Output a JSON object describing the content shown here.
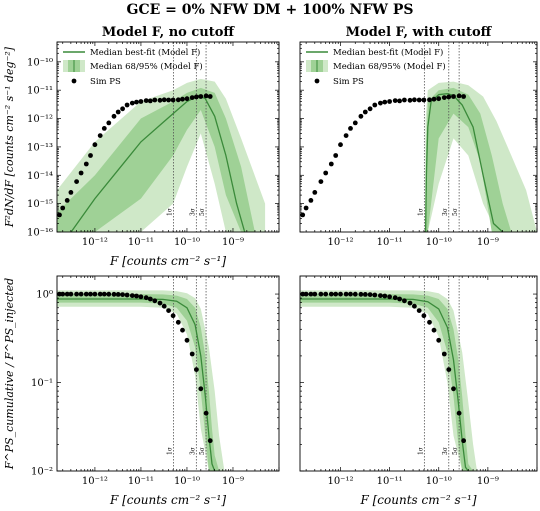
{
  "figure": {
    "suptitle": "GCE = 0% NFW DM + 100% NFW PS"
  },
  "colors": {
    "band95": "#cfe8c8",
    "band68": "#9fd196",
    "median": "#3a8a3a",
    "points": "#000000",
    "vline": "#555555"
  },
  "chart_data": [
    {
      "type": "line",
      "title": "Model F, no cutoff",
      "xlabel": "F [counts cm⁻² s⁻¹]",
      "ylabel": "F²dN/dF [counts cm⁻² s⁻¹ deg⁻²]",
      "xscale": "log",
      "yscale": "log",
      "xlim": [
        1.5e-13,
        1e-08
      ],
      "ylim": [
        1e-16,
        5e-10
      ],
      "xticks": [
        "10⁻¹²",
        "10⁻¹¹",
        "10⁻¹⁰",
        "10⁻⁹"
      ],
      "yticks": [
        "10⁻¹⁶",
        "10⁻¹⁵",
        "10⁻¹⁴",
        "10⁻¹³",
        "10⁻¹²",
        "10⁻¹¹",
        "10⁻¹⁰"
      ],
      "legend": {
        "position": "top-left",
        "entries": [
          "Median best-fit (Model F)",
          "Median 68/95% (Model F)",
          "Sim PS"
        ]
      },
      "vlines": [
        {
          "x": 5.1e-11,
          "label": "1σ"
        },
        {
          "x": 1.6e-10,
          "label": "3σ"
        },
        {
          "x": 2.6e-10,
          "label": "5σ"
        }
      ],
      "series": [
        {
          "name": "Median best-fit (Model F)",
          "x": [
            1.5e-13,
            1e-12,
            1e-11,
            5e-11,
            1e-10,
            1.8e-10,
            2.5e-10,
            4e-10,
            7e-10,
            1.2e-09,
            1.8e-09
          ],
          "y": [
            2e-17,
            1.5e-15,
            1.5e-13,
            1.5e-12,
            4e-12,
            6.5e-12,
            5e-12,
            1.2e-12,
            5e-14,
            1e-15,
            1e-16
          ]
        },
        {
          "name": "Median 68/95% (Model F)",
          "band": "68",
          "x": [
            1.5e-13,
            1e-12,
            1e-11,
            5e-11,
            1e-10,
            2e-10,
            4e-10,
            7e-10,
            1.5e-09,
            3e-09
          ],
          "lower": [
            1e-16,
            1e-16,
            1.5e-15,
            5e-14,
            4e-13,
            2e-12,
            1e-13,
            2e-15,
            1e-16,
            1e-16
          ],
          "upper": [
            5e-16,
            1e-14,
            1e-12,
            4e-12,
            8e-12,
            1.2e-11,
            8e-12,
            1e-12,
            2e-14,
            1e-16
          ]
        },
        {
          "name": "Median 68/95% (Model F)",
          "band": "95",
          "x": [
            1.5e-13,
            1e-12,
            1e-11,
            5e-11,
            1e-10,
            2e-10,
            4e-10,
            7e-10,
            1.5e-09,
            5e-09
          ],
          "lower": [
            1e-16,
            1e-16,
            1e-16,
            1e-15,
            2e-14,
            3e-13,
            5e-15,
            1e-16,
            1e-16,
            1e-16
          ],
          "upper": [
            3e-15,
            1.5e-13,
            4e-12,
            1e-11,
            1.8e-11,
            2.5e-11,
            2e-11,
            5e-12,
            2e-13,
            1e-15
          ]
        },
        {
          "name": "Sim PS",
          "x": [
            1.7e-13,
            2e-13,
            2.5e-13,
            3e-13,
            4e-13,
            5e-13,
            6.5e-13,
            8e-13,
            1e-12,
            1.3e-12,
            1.6e-12,
            2e-12,
            2.6e-12,
            3.2e-12,
            4e-12,
            5e-12,
            6.5e-12,
            8e-12,
            1e-11,
            1.3e-11,
            1.6e-11,
            2e-11,
            2.6e-11,
            3.2e-11,
            4e-11,
            5e-11,
            6.5e-11,
            8e-11,
            1e-10,
            1.3e-10,
            1.6e-10,
            2e-10,
            2.6e-10,
            3.2e-10
          ],
          "y": [
            4e-16,
            7e-16,
            1.3e-15,
            2.5e-15,
            6e-15,
            1.2e-14,
            2.5e-14,
            5e-14,
            1.2e-13,
            2.5e-13,
            4.5e-13,
            7e-13,
            1.2e-12,
            1.7e-12,
            2.2e-12,
            3e-12,
            3.5e-12,
            3.8e-12,
            4e-12,
            4.3e-12,
            4.2e-12,
            4.5e-12,
            4.4e-12,
            4.6e-12,
            4.5e-12,
            4.5e-12,
            4.6e-12,
            4.8e-12,
            5e-12,
            5.5e-12,
            5.8e-12,
            6e-12,
            6.3e-12,
            6e-12
          ]
        }
      ]
    },
    {
      "type": "line",
      "title": "Model F, with cutoff",
      "xscale": "log",
      "yscale": "log",
      "xlim": [
        1.5e-13,
        1e-08
      ],
      "ylim": [
        1e-16,
        5e-10
      ],
      "xticks": [
        "10⁻¹²",
        "10⁻¹¹",
        "10⁻¹⁰",
        "10⁻⁹"
      ],
      "legend": {
        "position": "top-left",
        "entries": [
          "Median best-fit (Model F)",
          "Median 68/95% (Model F)",
          "Sim PS"
        ]
      },
      "vlines": [
        {
          "x": 5.1e-11,
          "label": "1σ"
        },
        {
          "x": 1.6e-10,
          "label": "3σ"
        },
        {
          "x": 2.6e-10,
          "label": "5σ"
        }
      ],
      "series": [
        {
          "name": "Median best-fit (Model F)",
          "x": [
            5.4e-11,
            5.6e-11,
            6e-11,
            7e-11,
            1e-10,
            1.5e-10,
            2e-10,
            3e-10,
            5e-10,
            8e-10,
            1.3e-09,
            2e-09
          ],
          "y": [
            1e-16,
            1e-14,
            5e-13,
            4e-12,
            7e-12,
            7.5e-12,
            6.5e-12,
            3e-12,
            5e-13,
            1e-14,
            2e-16,
            1e-16
          ]
        },
        {
          "name": "Median 68/95% (Model F)",
          "band": "68",
          "x": [
            5.3e-11,
            5.5e-11,
            6e-11,
            1e-10,
            2e-10,
            4e-10,
            7e-10,
            1.2e-09,
            2e-09,
            3e-09
          ],
          "lower": [
            1e-16,
            1e-16,
            1e-16,
            2e-13,
            1.5e-12,
            5e-13,
            3e-14,
            1e-16,
            1e-16,
            1e-16
          ],
          "upper": [
            1e-16,
            1e-13,
            4e-12,
            1e-11,
            1.2e-11,
            7e-12,
            1.5e-12,
            5e-14,
            1e-15,
            1e-16
          ]
        },
        {
          "name": "Median 68/95% (Model F)",
          "band": "95",
          "x": [
            5.2e-11,
            5.4e-11,
            6e-11,
            1e-10,
            2e-10,
            4e-10,
            8e-10,
            1.5e-09,
            3e-09,
            6e-09,
            1e-08
          ],
          "lower": [
            1e-16,
            1e-16,
            1e-16,
            5e-15,
            2e-13,
            5e-14,
            1e-15,
            1e-16,
            1e-16,
            1e-16,
            1e-16
          ],
          "upper": [
            1e-16,
            1e-12,
            1e-11,
            1.8e-11,
            2e-11,
            1.5e-11,
            6e-12,
            8e-13,
            5e-14,
            3e-15,
            1e-16
          ]
        },
        {
          "name": "Sim PS",
          "x": [
            1.7e-13,
            2e-13,
            2.5e-13,
            3e-13,
            4e-13,
            5e-13,
            6.5e-13,
            8e-13,
            1e-12,
            1.3e-12,
            1.6e-12,
            2e-12,
            2.6e-12,
            3.2e-12,
            4e-12,
            5e-12,
            6.5e-12,
            8e-12,
            1e-11,
            1.3e-11,
            1.6e-11,
            2e-11,
            2.6e-11,
            3.2e-11,
            4e-11,
            5e-11,
            6.5e-11,
            8e-11,
            1e-10,
            1.3e-10,
            1.6e-10,
            2e-10,
            2.6e-10,
            3.2e-10
          ],
          "y": [
            4e-16,
            7e-16,
            1.3e-15,
            2.5e-15,
            6e-15,
            1.2e-14,
            2.5e-14,
            5e-14,
            1.2e-13,
            2.5e-13,
            4.5e-13,
            7e-13,
            1.2e-12,
            1.7e-12,
            2.2e-12,
            3e-12,
            3.5e-12,
            3.8e-12,
            4e-12,
            4.3e-12,
            4.2e-12,
            4.5e-12,
            4.4e-12,
            4.6e-12,
            4.5e-12,
            4.5e-12,
            4.6e-12,
            4.8e-12,
            5e-12,
            5.5e-12,
            5.8e-12,
            6e-12,
            6.3e-12,
            6e-12
          ]
        }
      ]
    },
    {
      "type": "line",
      "xlabel": "F [counts cm⁻² s⁻¹]",
      "ylabel": "F^PS_cumulative / F^PS_injected",
      "xscale": "log",
      "yscale": "log",
      "xlim": [
        1.5e-13,
        1e-08
      ],
      "ylim": [
        0.01,
        1.6
      ],
      "xticks": [
        "10⁻¹²",
        "10⁻¹¹",
        "10⁻¹⁰",
        "10⁻⁹"
      ],
      "yticks": [
        "10⁻²",
        "10⁻¹",
        "10⁰"
      ],
      "vlines": [
        {
          "x": 5.1e-11,
          "label": "1σ"
        },
        {
          "x": 1.6e-10,
          "label": "3σ"
        },
        {
          "x": 2.6e-10,
          "label": "5σ"
        }
      ],
      "series": [
        {
          "name": "Median best-fit (Model F)",
          "x": [
            1.5e-13,
            1e-12,
            1e-11,
            3e-11,
            6e-11,
            1e-10,
            1.5e-10,
            2e-10,
            2.5e-10,
            3e-10,
            3.5e-10,
            4e-10
          ],
          "y": [
            0.88,
            0.88,
            0.88,
            0.87,
            0.83,
            0.7,
            0.45,
            0.2,
            0.07,
            0.025,
            0.012,
            0.01
          ]
        },
        {
          "name": "Median 68/95% (Model F)",
          "band": "68",
          "x": [
            1.5e-13,
            1e-12,
            1e-11,
            3e-11,
            6e-11,
            1e-10,
            1.5e-10,
            2e-10,
            2.5e-10,
            3e-10,
            3.5e-10,
            4e-10,
            5e-10
          ],
          "lower": [
            0.8,
            0.8,
            0.8,
            0.78,
            0.7,
            0.5,
            0.25,
            0.08,
            0.025,
            0.01,
            0.01,
            0.01,
            0.01
          ],
          "upper": [
            1.0,
            1.0,
            1.0,
            0.99,
            0.96,
            0.88,
            0.7,
            0.42,
            0.2,
            0.08,
            0.03,
            0.015,
            0.01
          ]
        },
        {
          "name": "Median 68/95% (Model F)",
          "band": "95",
          "x": [
            1.5e-13,
            1e-12,
            1e-11,
            3e-11,
            6e-11,
            1e-10,
            1.5e-10,
            2e-10,
            3e-10,
            4e-10,
            5e-10,
            6.5e-10
          ],
          "lower": [
            0.72,
            0.72,
            0.72,
            0.7,
            0.6,
            0.35,
            0.12,
            0.03,
            0.01,
            0.01,
            0.01,
            0.01
          ],
          "upper": [
            1.1,
            1.1,
            1.1,
            1.1,
            1.08,
            1.02,
            0.9,
            0.68,
            0.25,
            0.08,
            0.025,
            0.01
          ]
        },
        {
          "name": "Sim PS",
          "x": [
            1.7e-13,
            2e-13,
            2.5e-13,
            3e-13,
            4e-13,
            5e-13,
            6.5e-13,
            8e-13,
            1e-12,
            1.3e-12,
            1.6e-12,
            2e-12,
            2.6e-12,
            3.2e-12,
            4e-12,
            5e-12,
            6.5e-12,
            8e-12,
            1e-11,
            1.3e-11,
            1.6e-11,
            2e-11,
            2.6e-11,
            3.2e-11,
            4e-11,
            5e-11,
            6.5e-11,
            8e-11,
            1e-10,
            1.3e-10,
            1.6e-10,
            2e-10,
            2.6e-10,
            3.2e-10
          ],
          "y": [
            1.0,
            1.0,
            1.0,
            1.0,
            1.0,
            1.0,
            1.0,
            1.0,
            1.0,
            1.0,
            0.998,
            0.997,
            0.995,
            0.99,
            0.985,
            0.975,
            0.96,
            0.95,
            0.93,
            0.91,
            0.88,
            0.84,
            0.79,
            0.73,
            0.65,
            0.57,
            0.48,
            0.39,
            0.3,
            0.21,
            0.14,
            0.085,
            0.045,
            0.022
          ]
        }
      ]
    },
    {
      "type": "line",
      "xlabel": "F [counts cm⁻² s⁻¹]",
      "xscale": "log",
      "yscale": "log",
      "xlim": [
        1.5e-13,
        1e-08
      ],
      "ylim": [
        0.01,
        1.6
      ],
      "xticks": [
        "10⁻¹²",
        "10⁻¹¹",
        "10⁻¹⁰",
        "10⁻⁹"
      ],
      "vlines": [
        {
          "x": 5.1e-11,
          "label": "1σ"
        },
        {
          "x": 1.6e-10,
          "label": "3σ"
        },
        {
          "x": 2.6e-10,
          "label": "5σ"
        }
      ],
      "series": [
        {
          "name": "Median best-fit (Model F)",
          "x": [
            1.5e-13,
            1e-12,
            1e-11,
            3e-11,
            6e-11,
            1e-10,
            1.5e-10,
            2e-10,
            2.5e-10,
            3e-10,
            3.5e-10,
            4e-10
          ],
          "y": [
            0.88,
            0.88,
            0.88,
            0.87,
            0.82,
            0.68,
            0.42,
            0.18,
            0.06,
            0.022,
            0.011,
            0.01
          ]
        },
        {
          "name": "Median 68/95% (Model F)",
          "band": "68",
          "x": [
            1.5e-13,
            1e-12,
            1e-11,
            3e-11,
            6e-11,
            1e-10,
            1.5e-10,
            2e-10,
            2.5e-10,
            3e-10,
            3.5e-10,
            4e-10,
            5e-10
          ],
          "lower": [
            0.8,
            0.8,
            0.8,
            0.78,
            0.7,
            0.48,
            0.22,
            0.07,
            0.02,
            0.01,
            0.01,
            0.01,
            0.01
          ],
          "upper": [
            1.0,
            1.0,
            1.0,
            0.99,
            0.96,
            0.88,
            0.68,
            0.4,
            0.18,
            0.07,
            0.025,
            0.012,
            0.01
          ]
        },
        {
          "name": "Median 68/95% (Model F)",
          "band": "95",
          "x": [
            1.5e-13,
            1e-12,
            1e-11,
            3e-11,
            6e-11,
            1e-10,
            1.5e-10,
            2e-10,
            3e-10,
            4e-10,
            5e-10,
            6e-10
          ],
          "lower": [
            0.72,
            0.72,
            0.72,
            0.7,
            0.6,
            0.33,
            0.1,
            0.025,
            0.01,
            0.01,
            0.01,
            0.01
          ],
          "upper": [
            1.1,
            1.1,
            1.1,
            1.1,
            1.08,
            1.02,
            0.88,
            0.65,
            0.22,
            0.06,
            0.02,
            0.01
          ]
        },
        {
          "name": "Sim PS",
          "x": [
            1.7e-13,
            2e-13,
            2.5e-13,
            3e-13,
            4e-13,
            5e-13,
            6.5e-13,
            8e-13,
            1e-12,
            1.3e-12,
            1.6e-12,
            2e-12,
            2.6e-12,
            3.2e-12,
            4e-12,
            5e-12,
            6.5e-12,
            8e-12,
            1e-11,
            1.3e-11,
            1.6e-11,
            2e-11,
            2.6e-11,
            3.2e-11,
            4e-11,
            5e-11,
            6.5e-11,
            8e-11,
            1e-10,
            1.3e-10,
            1.6e-10,
            2e-10,
            2.6e-10,
            3.2e-10
          ],
          "y": [
            1.0,
            1.0,
            1.0,
            1.0,
            1.0,
            1.0,
            1.0,
            1.0,
            1.0,
            1.0,
            0.998,
            0.997,
            0.995,
            0.99,
            0.985,
            0.975,
            0.96,
            0.95,
            0.93,
            0.91,
            0.88,
            0.84,
            0.79,
            0.73,
            0.65,
            0.57,
            0.48,
            0.39,
            0.3,
            0.21,
            0.14,
            0.085,
            0.045,
            0.022
          ]
        }
      ]
    }
  ]
}
